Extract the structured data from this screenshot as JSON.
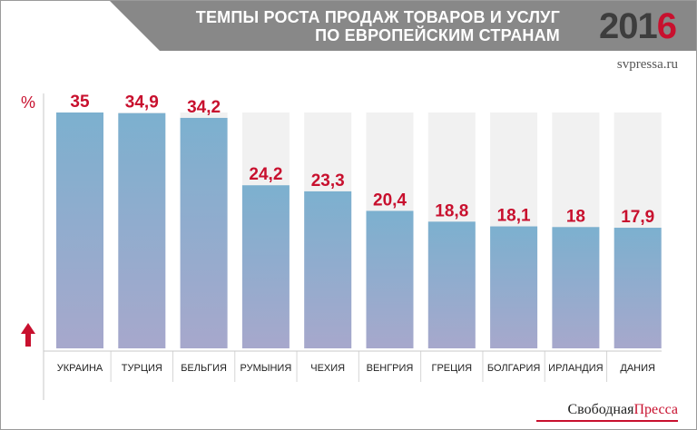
{
  "header": {
    "title_line1": "ТЕМПЫ РОСТА ПРОДАЖ ТОВАРОВ И УСЛУГ",
    "title_line2": "ПО ЕВРОПЕЙСКИМ СТРАНАМ",
    "year_prefix": "201",
    "year_suffix": "6",
    "source": "svpressa.ru"
  },
  "footer": {
    "brand_part1": "Свободная",
    "brand_part2": "Пресса"
  },
  "colors": {
    "header_band": "#888888",
    "accent_red": "#c8102e",
    "bar_top": "#7cb0cf",
    "bar_bottom": "#a7a8cc",
    "bar_background": "#f1f1f1"
  },
  "chart_data": {
    "type": "bar",
    "ylabel": "%",
    "ylim": [
      0,
      35
    ],
    "categories": [
      "УКРАИНА",
      "ТУРЦИЯ",
      "БЕЛЬГИЯ",
      "РУМЫНИЯ",
      "ЧЕХИЯ",
      "ВЕНГРИЯ",
      "ГРЕЦИЯ",
      "БОЛГАРИЯ",
      "ИРЛАНДИЯ",
      "ДАНИЯ"
    ],
    "values": [
      35,
      34.9,
      34.2,
      24.2,
      23.3,
      20.4,
      18.8,
      18.1,
      18,
      17.9
    ],
    "value_labels": [
      "35",
      "34,9",
      "34,2",
      "24,2",
      "23,3",
      "20,4",
      "18,8",
      "18,1",
      "18",
      "17,9"
    ],
    "grid": false,
    "legend": "none"
  }
}
